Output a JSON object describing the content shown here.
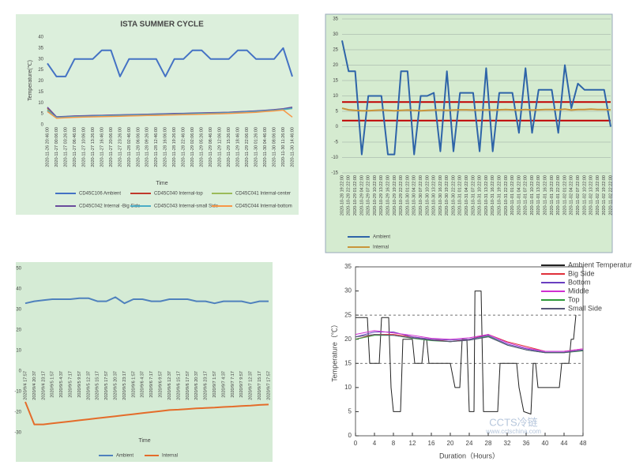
{
  "chart_data": [
    {
      "type": "line",
      "title": "ISTA SUMMER CYCLE",
      "y_label": "Temperature(℃)",
      "x_label": "Time",
      "categories": [
        "2020-11-26 20:46:00",
        "2020-11-27 00:06:00",
        "2020-11-27 03:26:00",
        "2020-11-27 06:46:00",
        "2020-11-27 10:06:00",
        "2020-11-27 13:26:00",
        "2020-11-27 16:46:00",
        "2020-11-27 20:06:00",
        "2020-11-27 23:26:00",
        "2020-11-28 02:46:00",
        "2020-11-28 06:06:00",
        "2020-11-28 09:26:00",
        "2020-11-28 12:46:00",
        "2020-11-28 16:06:00",
        "2020-11-28 19:26:00",
        "2020-11-28 22:46:00",
        "2020-11-29 02:06:00",
        "2020-11-29 05:26:00",
        "2020-11-29 08:46:00",
        "2020-11-29 12:06:00",
        "2020-11-29 15:26:00",
        "2020-11-29 18:46:00",
        "2020-11-29 22:06:00",
        "2020-11-30 01:26:00",
        "2020-11-30 04:46:00",
        "2020-11-30 08:06:00",
        "2020-11-30 11:26:00",
        "2020-11-30 14:46:00"
      ],
      "series": [
        {
          "name": "CD45C106 Ambient",
          "color": "#4472c4",
          "values": [
            28,
            22,
            22,
            30,
            30,
            30,
            34,
            34,
            22,
            30,
            30,
            30,
            30,
            22,
            30,
            30,
            34,
            34,
            30,
            30,
            30,
            34,
            34,
            30,
            30,
            30,
            35,
            22
          ]
        },
        {
          "name": "CD45C040 Internal-top",
          "color": "#c0392b",
          "values": [
            7.5,
            3.5,
            3.7,
            3.9,
            4.0,
            4.1,
            4.2,
            4.3,
            4.4,
            4.5,
            4.6,
            4.7,
            4.8,
            4.9,
            5.0,
            5.1,
            5.2,
            5.3,
            5.4,
            5.5,
            5.6,
            5.8,
            6.0,
            6.2,
            6.5,
            6.8,
            7.2,
            7.8
          ]
        },
        {
          "name": "CD45C041 Internal-center",
          "color": "#9bbb59",
          "values": [
            7,
            3.2,
            3.4,
            3.6,
            3.7,
            3.8,
            3.9,
            4.0,
            4.1,
            4.2,
            4.3,
            4.4,
            4.5,
            4.6,
            4.7,
            4.8,
            4.9,
            5.0,
            5.1,
            5.2,
            5.3,
            5.5,
            5.7,
            5.9,
            6.2,
            6.5,
            6.9,
            7.4
          ]
        },
        {
          "name": "CD45C042 Internal -Big Side",
          "color": "#6a4c9c",
          "values": [
            8,
            3.6,
            3.8,
            4.0,
            4.1,
            4.2,
            4.3,
            4.4,
            4.5,
            4.6,
            4.7,
            4.8,
            4.9,
            5.0,
            5.1,
            5.2,
            5.3,
            5.4,
            5.5,
            5.6,
            5.7,
            5.9,
            6.1,
            6.3,
            6.6,
            6.9,
            7.3,
            8.0
          ]
        },
        {
          "name": "CD45C043 Internal-small Side",
          "color": "#4bacc6",
          "values": [
            6.5,
            3.3,
            3.5,
            3.7,
            3.8,
            3.9,
            4.0,
            4.1,
            4.2,
            4.3,
            4.4,
            4.5,
            4.6,
            4.7,
            4.8,
            4.9,
            5.0,
            5.1,
            5.2,
            5.3,
            5.4,
            5.6,
            5.8,
            6.0,
            6.3,
            6.6,
            7.0,
            7.5
          ]
        },
        {
          "name": "CD45C044 Internal-bottom",
          "color": "#f79646",
          "values": [
            6,
            3,
            3.2,
            3.4,
            3.5,
            3.6,
            3.7,
            3.8,
            3.9,
            4.0,
            4.1,
            4.2,
            4.3,
            4.4,
            4.5,
            4.6,
            4.7,
            4.8,
            4.9,
            5.0,
            5.1,
            5.3,
            5.5,
            5.7,
            6.0,
            6.3,
            6.7,
            3.5
          ]
        }
      ],
      "ylim": [
        0,
        40
      ],
      "yticks": [
        0,
        5,
        10,
        15,
        20,
        25,
        30,
        35,
        40
      ],
      "grid": false,
      "legend": "bottom"
    },
    {
      "type": "line",
      "categories": [
        "2020-10-28 19:22:00",
        "2020-10-28 22:22:00",
        "2020-10-29 01:22:00",
        "2020-10-29 04:22:00",
        "2020-10-29 07:22:00",
        "2020-10-29 10:22:00",
        "2020-10-29 13:22:00",
        "2020-10-29 16:22:00",
        "2020-10-29 19:22:00",
        "2020-10-29 22:22:00",
        "2020-10-30 01:22:00",
        "2020-10-30 04:22:00",
        "2020-10-30 07:22:00",
        "2020-10-30 10:22:00",
        "2020-10-30 13:22:00",
        "2020-10-30 16:22:00",
        "2020-10-30 19:22:00",
        "2020-10-30 22:22:00",
        "2020-10-31 01:22:00",
        "2020-10-31 04:22:00",
        "2020-10-31 07:22:00",
        "2020-10-31 10:22:00",
        "2020-10-31 13:22:00",
        "2020-10-31 16:22:00",
        "2020-10-31 19:22:00",
        "2020-10-31 22:22:00",
        "2020-11-01 01:22:00",
        "2020-11-01 04:22:00",
        "2020-11-01 07:22:00",
        "2020-11-01 10:22:00",
        "2020-11-01 13:22:00",
        "2020-11-01 16:22:00",
        "2020-11-01 19:22:00",
        "2020-11-01 22:22:00",
        "2020-11-02 01:22:00",
        "2020-11-02 04:22:00",
        "2020-11-02 07:22:00",
        "2020-11-02 10:22:00",
        "2020-11-02 13:22:00",
        "2020-11-02 16:22:00",
        "2020-11-02 19:22:00",
        "2020-11-02 22:22:00"
      ],
      "series": [
        {
          "name": "Ambient",
          "color": "#2e64a8",
          "values": [
            28,
            18,
            18,
            -9,
            10,
            10,
            10,
            -9,
            -9,
            18,
            18,
            -9,
            10,
            10,
            11,
            -8,
            18,
            -8,
            11,
            11,
            11,
            -8,
            19,
            -8,
            11,
            11,
            11,
            -2,
            19,
            -2,
            12,
            12,
            12,
            -2,
            20,
            6,
            14,
            12,
            12,
            12,
            12,
            0
          ]
        },
        {
          "name": "Internal",
          "color": "#c9953a",
          "values": [
            6,
            5.5,
            5.3,
            5.2,
            5.2,
            5.3,
            5.4,
            5.3,
            5.2,
            5.3,
            5.4,
            5.3,
            5.2,
            5.3,
            5.4,
            5.4,
            5.3,
            5.4,
            5.5,
            5.5,
            5.4,
            5.4,
            5.5,
            5.4,
            5.5,
            5.6,
            5.5,
            5.4,
            5.6,
            5.4,
            5.5,
            5.6,
            5.6,
            5.5,
            5.7,
            5.4,
            5.6,
            5.6,
            5.7,
            5.6,
            5.6,
            5.5
          ]
        }
      ],
      "hlines": {
        "values": [
          8,
          2
        ],
        "color": "#c00000",
        "dash": false
      },
      "ylim": [
        -15,
        35
      ],
      "yticks": [
        -15,
        -10,
        -5,
        0,
        5,
        10,
        15,
        20,
        25,
        30,
        35
      ],
      "grid": true,
      "legend": "bottom"
    },
    {
      "type": "line",
      "x_label": "Time",
      "categories": [
        "2020/9/4 17:57",
        "2020/9/4 20:37",
        "2020/9/4 23:17",
        "2020/9/5 1:57",
        "2020/9/5 4:37",
        "2020/9/5 7:17",
        "2020/9/5 9:57",
        "2020/9/5 12:37",
        "2020/9/5 15:17",
        "2020/9/5 17:57",
        "2020/9/5 20:37",
        "2020/9/5 23:17",
        "2020/9/6 1:57",
        "2020/9/6 4:37",
        "2020/9/6 7:17",
        "2020/9/6 9:57",
        "2020/9/6 12:37",
        "2020/9/6 15:17",
        "2020/9/6 17:57",
        "2020/9/6 20:37",
        "2020/9/6 23:17",
        "2020/9/7 1:57",
        "2020/9/7 4:37",
        "2020/9/7 7:17",
        "2020/9/7 9:57",
        "2020/9/7 12:37",
        "2020/9/7 15:17",
        "2020/9/7 17:57"
      ],
      "series": [
        {
          "name": "Ambient",
          "color": "#4f81bd",
          "values": [
            33,
            34,
            34.5,
            35,
            35,
            35,
            35.5,
            35.5,
            34,
            34,
            36,
            33,
            35,
            35,
            34,
            34,
            35,
            35,
            35,
            34,
            34,
            33,
            34,
            34,
            34,
            33,
            34,
            34
          ]
        },
        {
          "name": "Internal",
          "color": "#e46c2a",
          "values": [
            -15,
            -26,
            -26,
            -25.5,
            -25,
            -24.5,
            -24,
            -23.5,
            -23,
            -22.5,
            -22,
            -21.5,
            -21,
            -20.5,
            -20,
            -19.5,
            -19,
            -18.8,
            -18.5,
            -18.2,
            -18,
            -17.8,
            -17.5,
            -17.3,
            -17,
            -16.8,
            -16.5,
            -16.3
          ]
        }
      ],
      "ylim": [
        -30,
        50
      ],
      "yticks": [
        -30,
        -20,
        -10,
        0,
        10,
        20,
        30,
        40,
        50
      ],
      "grid": false,
      "legend": "bottom"
    },
    {
      "type": "line",
      "y_label": "Temperature（℃）",
      "x_label": "Duration（Hours）",
      "annotations": [
        "CCTS冷链",
        "www.cctschina.com"
      ],
      "x": [
        0,
        4,
        8,
        12,
        16,
        20,
        24,
        28,
        32,
        36,
        40,
        44,
        48
      ],
      "series": [
        {
          "name": "Ambient Temperature",
          "color": "#222222",
          "x": [
            0,
            2.5,
            3,
            5,
            5.5,
            7,
            7.5,
            8,
            9.5,
            10,
            12,
            12.5,
            14,
            14.5,
            15,
            15.5,
            20,
            21,
            22,
            22.5,
            23.5,
            24,
            25,
            25.2,
            26.5,
            27,
            30,
            30.5,
            34,
            34.5,
            35.5,
            37,
            37.5,
            38,
            38.5,
            43,
            43.5,
            45,
            45.5,
            46,
            46.5
          ],
          "values": [
            24.5,
            24.5,
            15,
            15,
            24.5,
            24.5,
            10,
            5,
            5,
            20,
            20,
            15,
            15,
            20,
            20,
            15,
            15,
            10,
            10,
            20,
            20,
            5,
            5,
            30,
            30,
            5,
            5,
            15,
            15,
            10,
            5,
            4.5,
            15,
            15,
            10,
            10,
            15,
            15,
            20,
            20,
            25
          ]
        },
        {
          "name": "Big Side",
          "color": "#e0303a",
          "values": [
            20,
            21,
            21,
            20.5,
            20,
            19.5,
            20,
            21,
            19.5,
            18.5,
            17.5,
            17.5,
            18
          ]
        },
        {
          "name": "Bottom",
          "color": "#6a3fc0",
          "values": [
            20.5,
            21.5,
            21.5,
            20.5,
            20,
            19.8,
            20,
            20.8,
            19,
            18,
            17.3,
            17.3,
            17.8
          ]
        },
        {
          "name": "Middle",
          "color": "#d030d0",
          "values": [
            21,
            21.8,
            21.3,
            20.8,
            20.2,
            20,
            20.3,
            21,
            19.3,
            18.2,
            17.5,
            17.5,
            18
          ]
        },
        {
          "name": "Top",
          "color": "#2e9a3a",
          "values": [
            20,
            20.8,
            20.8,
            20.2,
            19.7,
            19.5,
            19.8,
            20.6,
            18.8,
            17.8,
            17.2,
            17.2,
            17.6
          ]
        },
        {
          "name": "Small Side",
          "color": "#555577",
          "values": [
            20.5,
            21,
            20.8,
            20.3,
            19.8,
            19.5,
            19.8,
            20.5,
            18.8,
            17.8,
            17.2,
            17.2,
            17.7
          ]
        }
      ],
      "hlines": {
        "values": [
          25,
          15
        ],
        "color": "#444444",
        "dash": true
      },
      "xlim": [
        0,
        48
      ],
      "xticks": [
        0,
        4,
        8,
        12,
        16,
        20,
        24,
        28,
        32,
        36,
        40,
        44,
        48
      ],
      "ylim": [
        0,
        35
      ],
      "yticks": [
        0,
        5,
        10,
        15,
        20,
        25,
        30,
        35
      ],
      "grid": false,
      "legend": "top right"
    }
  ]
}
